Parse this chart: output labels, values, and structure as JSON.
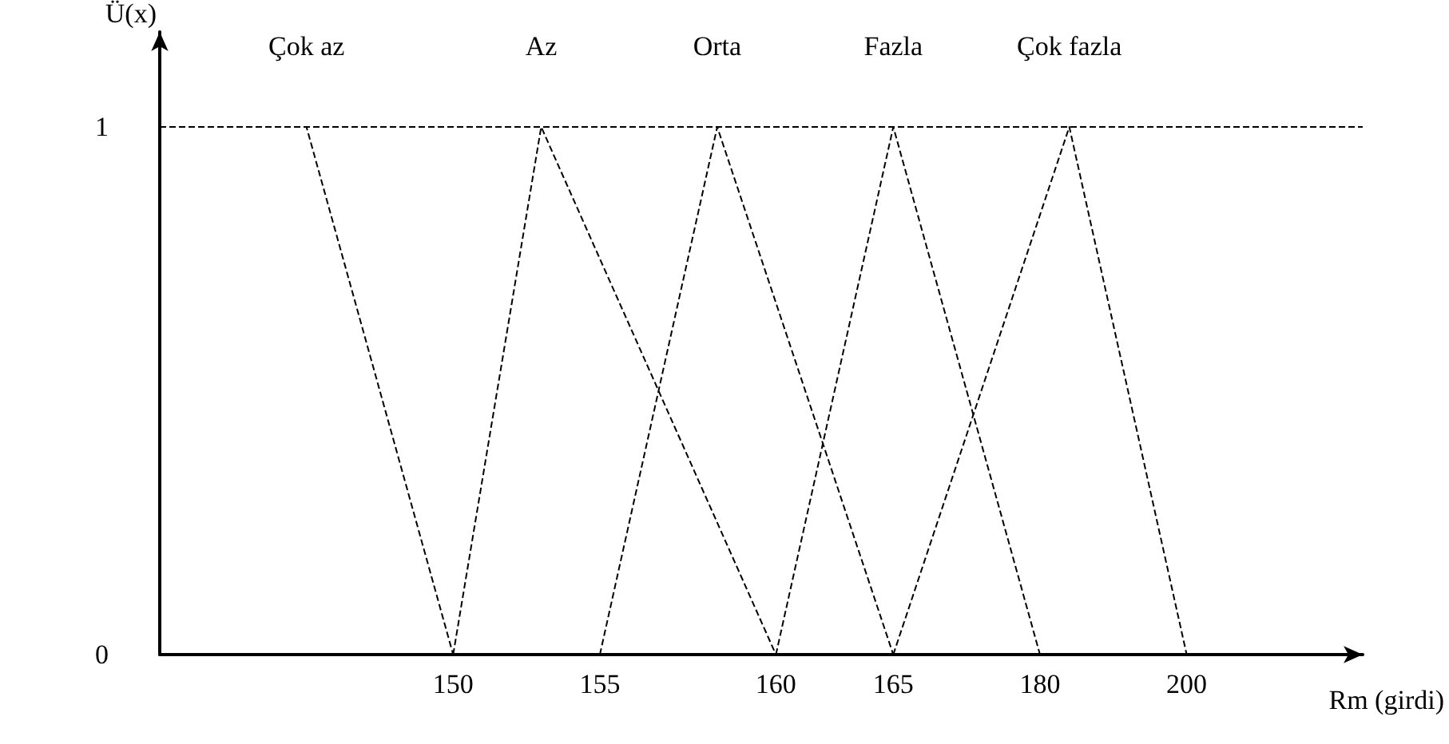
{
  "chart_data": {
    "type": "line",
    "xlabel": "Rm (girdi)",
    "ylabel": "Ü(x)",
    "categories": [
      null,
      null,
      null,
      null,
      null,
      null,
      null,
      null,
      null,
      null,
      "150",
      null,
      null,
      null,
      null,
      "155",
      null,
      null,
      null,
      null,
      null,
      "160",
      null,
      null,
      null,
      "165",
      null,
      null,
      null,
      null,
      "180",
      null,
      null,
      null,
      null,
      "200",
      null,
      null,
      null,
      null,
      null,
      null
    ],
    "ylim": [
      0,
      1.18
    ],
    "yticks": [
      0,
      1
    ],
    "series": [
      {
        "name": "Çok az",
        "color": "#000000",
        "values": [
          1,
          null,
          null,
          null,
          null,
          1,
          null,
          null,
          null,
          null,
          0,
          null,
          null,
          null,
          null,
          null,
          null,
          null,
          null,
          null,
          null,
          null,
          null,
          null,
          null,
          null,
          null,
          null,
          null,
          null,
          null,
          null,
          null,
          null,
          null,
          null,
          null,
          null,
          null,
          null,
          null,
          null
        ]
      },
      {
        "name": "Az",
        "color": "#000000",
        "values": [
          null,
          null,
          null,
          null,
          null,
          null,
          null,
          null,
          null,
          null,
          0,
          null,
          null,
          1,
          null,
          null,
          null,
          null,
          null,
          null,
          null,
          0,
          null,
          null,
          null,
          null,
          null,
          null,
          null,
          null,
          null,
          null,
          null,
          null,
          null,
          null,
          null,
          null,
          null,
          null,
          null,
          null
        ]
      },
      {
        "name": "Orta",
        "color": "#000000",
        "values": [
          null,
          null,
          null,
          null,
          null,
          null,
          null,
          null,
          null,
          null,
          null,
          null,
          null,
          null,
          null,
          0,
          null,
          null,
          null,
          1,
          null,
          null,
          null,
          null,
          null,
          0,
          null,
          null,
          null,
          null,
          null,
          null,
          null,
          null,
          null,
          null,
          null,
          null,
          null,
          null,
          null,
          null
        ]
      },
      {
        "name": "Fazla",
        "color": "#000000",
        "values": [
          null,
          null,
          null,
          null,
          null,
          null,
          null,
          null,
          null,
          null,
          null,
          null,
          null,
          null,
          null,
          null,
          null,
          null,
          null,
          null,
          null,
          0,
          null,
          null,
          null,
          1,
          null,
          null,
          null,
          null,
          0,
          null,
          null,
          null,
          null,
          null,
          null,
          null,
          null,
          null,
          null,
          null
        ]
      },
      {
        "name": "Çok fazla",
        "color": "#000000",
        "values": [
          null,
          null,
          null,
          null,
          null,
          null,
          null,
          null,
          null,
          null,
          null,
          null,
          null,
          null,
          null,
          null,
          null,
          null,
          null,
          null,
          null,
          null,
          null,
          null,
          null,
          0,
          null,
          null,
          null,
          null,
          null,
          1,
          null,
          null,
          null,
          0,
          null,
          null,
          null,
          null,
          null,
          null
        ]
      }
    ],
    "ref_lines": [
      {
        "axis": "y",
        "value": 1,
        "label": null,
        "color": "#000000",
        "line_style": "dashed"
      }
    ],
    "line_style": "dashed",
    "marker": "none",
    "grid": false,
    "legend": false
  }
}
